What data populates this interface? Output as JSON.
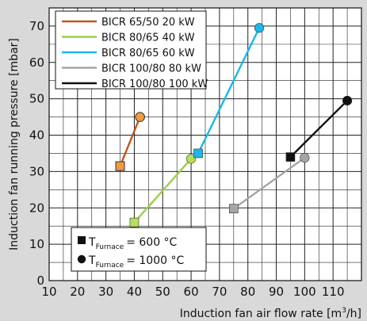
{
  "chart_data": {
    "type": "line",
    "xlabel": "Induction fan air flow rate [m",
    "xlabel_unit_sup": "3",
    "xlabel_tail": "/h]",
    "ylabel": "Induction fan running pressure [mbar]",
    "xlim": [
      10,
      120
    ],
    "ylim": [
      0,
      75
    ],
    "x_ticks": [
      10,
      20,
      30,
      40,
      50,
      60,
      70,
      80,
      90,
      100,
      110
    ],
    "y_ticks": [
      0,
      10,
      20,
      30,
      40,
      50,
      60,
      70
    ],
    "grid": true,
    "legend_position": "top-left",
    "series": [
      {
        "name": "BICR 65/50 20 kW",
        "color": "#c0561c",
        "marker_color": "#f19a3e",
        "x": [
          35,
          42
        ],
        "y": [
          31.5,
          45
        ]
      },
      {
        "name": "BICR 80/65 40 kW",
        "color": "#9ccf4a",
        "marker_color": "#b6e05a",
        "x": [
          40,
          60
        ],
        "y": [
          16,
          33.5
        ]
      },
      {
        "name": "BICR 80/65 60 kW",
        "color": "#1ab7e8",
        "marker_color": "#1ab7e8",
        "x": [
          62.5,
          84
        ],
        "y": [
          35,
          69.5
        ]
      },
      {
        "name": "BICR 100/80 80 kW",
        "color": "#a5a5a5",
        "marker_color": "#a5a5a5",
        "x": [
          75,
          100
        ],
        "y": [
          19.8,
          33.8
        ]
      },
      {
        "name": "BICR 100/80 100 kW",
        "color": "#111111",
        "marker_color": "#111111",
        "x": [
          95,
          115
        ],
        "y": [
          34,
          49.5
        ]
      }
    ],
    "marker_legend": [
      {
        "symbol": "square",
        "subscript": "Furnace",
        "value": "= 600 °C"
      },
      {
        "symbol": "circle",
        "subscript": "Furnace",
        "value": "= 1000 °C"
      }
    ]
  }
}
